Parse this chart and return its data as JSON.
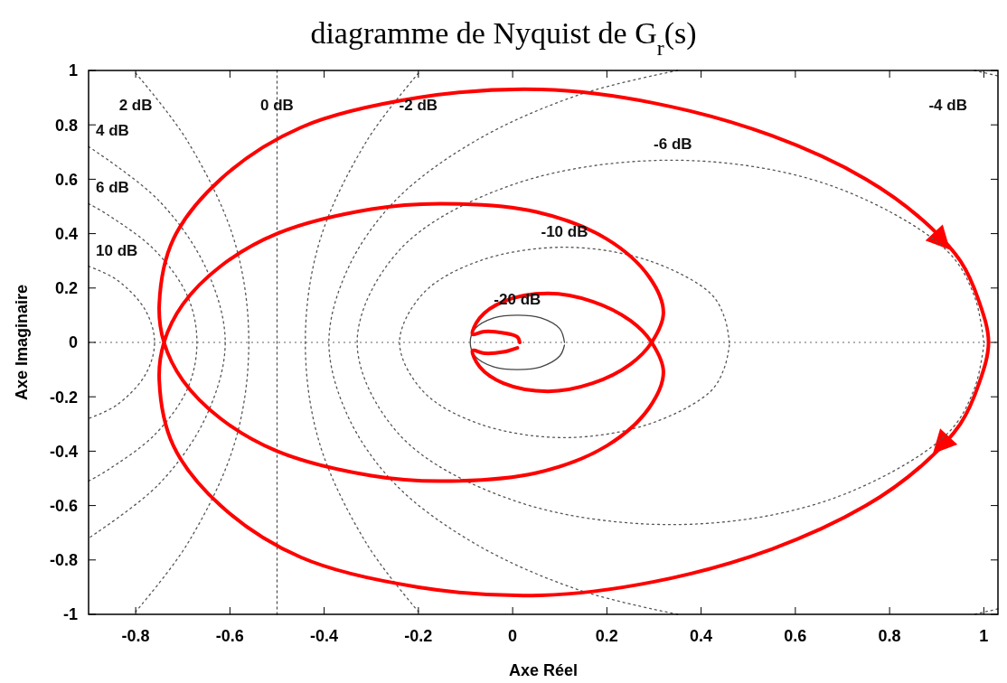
{
  "chart_data": {
    "type": "line",
    "title": "diagramme de Nyquist de G$_{r}$(s)",
    "xlabel": "Axe  Réel",
    "ylabel": "Axe  Imaginaire",
    "xlim": [
      -0.9,
      1.03
    ],
    "ylim": [
      -1,
      1
    ],
    "xticks": [
      -0.8,
      -0.6,
      -0.4,
      -0.2,
      0,
      0.2,
      0.4,
      0.6,
      0.8,
      1
    ],
    "yticks": [
      -1,
      -0.8,
      -0.6,
      -0.4,
      -0.2,
      0,
      0.2,
      0.4,
      0.6,
      0.8,
      1
    ],
    "grid": false,
    "ref_lines": [
      {
        "axis": "y",
        "value": 0,
        "color": "#999999",
        "line_style": "dotted"
      }
    ],
    "series": [
      {
        "name": "10 dB",
        "color": "#555555",
        "line_style": "dotted",
        "x": [
          -0.9,
          -0.84,
          -0.78,
          -0.76,
          -0.78,
          -0.84,
          -0.9
        ],
        "values": [
          0.28,
          0.23,
          0.12,
          0,
          -0.12,
          -0.23,
          -0.28
        ]
      },
      {
        "name": "6 dB",
        "color": "#555555",
        "line_style": "dotted",
        "x": [
          -0.9,
          -0.86,
          -0.76,
          -0.69,
          -0.67,
          -0.69,
          -0.76,
          -0.86,
          -0.9
        ],
        "values": [
          0.51,
          0.47,
          0.34,
          0.17,
          0,
          -0.17,
          -0.34,
          -0.47,
          -0.51
        ]
      },
      {
        "name": "4 dB",
        "color": "#555555",
        "line_style": "dotted",
        "x": [
          -0.9,
          -0.75,
          -0.65,
          -0.61,
          -0.65,
          -0.75,
          -0.9
        ],
        "values": [
          0.72,
          0.52,
          0.27,
          0,
          -0.27,
          -0.52,
          -0.72
        ]
      },
      {
        "name": "2 dB",
        "color": "#555555",
        "line_style": "dotted",
        "x": [
          -0.8,
          -0.69,
          -0.59,
          -0.56,
          -0.59,
          -0.69,
          -0.8
        ],
        "values": [
          0.99,
          0.74,
          0.37,
          0,
          -0.37,
          -0.74,
          -0.99
        ]
      },
      {
        "name": "0 dB",
        "color": "#555555",
        "line_style": "dotted",
        "x": [
          -0.5,
          -0.5
        ],
        "values": [
          1,
          -1
        ]
      },
      {
        "name": "-2 dB",
        "color": "#555555",
        "line_style": "dotted",
        "x": [
          -0.2,
          -0.31,
          -0.41,
          -0.44,
          -0.41,
          -0.31,
          -0.2
        ],
        "values": [
          0.99,
          0.74,
          0.37,
          0,
          -0.37,
          -0.74,
          -0.99
        ]
      },
      {
        "name": "-4 dB",
        "color": "#555555",
        "line_style": "dotted",
        "x": [
          0.98,
          1.03
        ],
        "values": [
          1,
          0.98
        ]
      },
      {
        "color": "#555555",
        "line_style": "dotted",
        "x": [
          0.35,
          0.14,
          -0.08,
          -0.25,
          -0.35,
          -0.39,
          -0.35,
          -0.25,
          -0.08,
          0.14,
          0.35
        ],
        "values": [
          1,
          0.91,
          0.74,
          0.52,
          0.27,
          0,
          -0.27,
          -0.52,
          -0.74,
          -0.91,
          -1
        ]
      },
      {
        "color": "#555555",
        "line_style": "dotted",
        "x": [
          1.03,
          0.98
        ],
        "values": [
          -0.98,
          -1
        ]
      },
      {
        "name": "-6 dB",
        "color": "#555555",
        "line_style": "dotted",
        "x": [
          1.0,
          0.98,
          0.92,
          0.67,
          0.34,
          0.0,
          -0.24,
          -0.33,
          -0.24,
          0.0,
          0.34,
          0.67,
          0.92,
          0.98,
          1.0
        ],
        "values": [
          0,
          0.17,
          0.34,
          0.58,
          0.67,
          0.58,
          0.34,
          0,
          -0.34,
          -0.58,
          -0.67,
          -0.58,
          -0.34,
          -0.17,
          -0.01
        ]
      },
      {
        "name": "-10 dB",
        "color": "#555555",
        "line_style": "dotted",
        "x": [
          0.46,
          0.45,
          0.42,
          0.29,
          0.11,
          -0.07,
          -0.19,
          -0.24,
          -0.19,
          -0.07,
          0.11,
          0.29,
          0.42,
          0.45,
          0.46
        ],
        "values": [
          0,
          0.09,
          0.18,
          0.3,
          0.35,
          0.3,
          0.18,
          0,
          -0.18,
          -0.3,
          -0.35,
          -0.3,
          -0.18,
          -0.09,
          -0.01
        ]
      },
      {
        "name": "-20 dB",
        "color": "#444444",
        "line_style": "solid",
        "x": [
          0.11,
          0.1,
          0.06,
          0.01,
          -0.04,
          -0.08,
          -0.09,
          -0.08,
          -0.04,
          0.01,
          0.06,
          0.1,
          0.11
        ],
        "values": [
          0,
          0.05,
          0.09,
          0.1,
          0.09,
          0.05,
          0,
          -0.05,
          -0.09,
          -0.1,
          -0.09,
          -0.05,
          -0.01
        ]
      },
      {
        "color": "#ff0000",
        "line_style": "solid",
        "x": [
          0.015,
          0.01,
          -0.02,
          -0.06,
          -0.085,
          -0.07,
          -0.02,
          0.075,
          0.17,
          0.25,
          0.295,
          0.32,
          0.29,
          0.2,
          0.05,
          -0.15,
          -0.3,
          -0.5,
          -0.62,
          -0.7,
          -0.74,
          -0.75,
          -0.72,
          -0.62,
          -0.45,
          -0.2,
          0.06,
          0.3,
          0.55,
          0.75,
          0.87,
          0.95,
          0.99,
          1.01,
          0.99,
          0.95,
          0.87,
          0.75,
          0.55,
          0.3,
          0.06,
          -0.2,
          -0.45,
          -0.62,
          -0.72,
          -0.75,
          -0.74,
          -0.7,
          -0.62,
          -0.5,
          -0.3,
          -0.15,
          0.05,
          0.2,
          0.29,
          0.32,
          0.295,
          0.25,
          0.17,
          0.075,
          -0.02,
          -0.07,
          -0.085,
          -0.06,
          -0.02,
          0.01
        ],
        "values": [
          0,
          0.02,
          0.035,
          0.04,
          0.03,
          0.09,
          0.15,
          0.18,
          0.15,
          0.08,
          0,
          -0.11,
          -0.24,
          -0.38,
          -0.48,
          -0.51,
          -0.49,
          -0.4,
          -0.28,
          -0.14,
          0,
          0.14,
          0.38,
          0.6,
          0.79,
          0.9,
          0.93,
          0.88,
          0.76,
          0.6,
          0.45,
          0.3,
          0.15,
          0,
          -0.15,
          -0.3,
          -0.45,
          -0.6,
          -0.76,
          -0.88,
          -0.93,
          -0.9,
          -0.79,
          -0.6,
          -0.38,
          -0.14,
          0,
          0.14,
          0.28,
          0.4,
          0.49,
          0.51,
          0.48,
          0.38,
          0.24,
          0.11,
          0,
          -0.08,
          -0.15,
          -0.18,
          -0.15,
          -0.09,
          -0.03,
          -0.04,
          -0.035,
          -0.02
        ]
      }
    ]
  }
}
